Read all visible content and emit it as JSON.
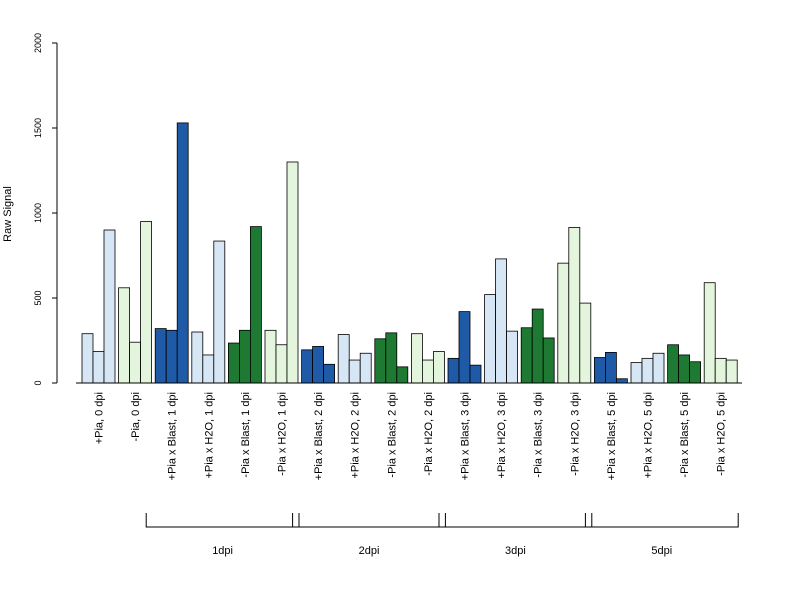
{
  "chart_data": {
    "type": "bar",
    "ylabel": "Raw Signal",
    "ylim": [
      0,
      2000
    ],
    "yticks": [
      0,
      500,
      1000,
      1500,
      2000
    ],
    "grid": false,
    "categories": [
      "+Pia, 0 dpi",
      "-Pia, 0 dpi",
      "+Pia x Blast, 1 dpi",
      "+Pia x H2O, 1 dpi",
      "-Pia x Blast, 1 dpi",
      "-Pia x H2O, 1 dpi",
      "+Pia x Blast, 2 dpi",
      "+Pia x H2O, 2 dpi",
      "-Pia x Blast, 2 dpi",
      "-Pia x H2O, 2 dpi",
      "+Pia x Blast, 3 dpi",
      "+Pia x H2O, 3 dpi",
      "-Pia x Blast, 3 dpi",
      "-Pia x H2O, 3 dpi",
      "+Pia x Blast, 5 dpi",
      "+Pia x H2O, 5 dpi",
      "-Pia x Blast, 5 dpi",
      "-Pia x H2O, 5 dpi"
    ],
    "colors": {
      "+Pia x Blast": "#1f5aa6",
      "+Pia x H2O": "#d7e6f5",
      "-Pia x Blast": "#1e7a32",
      "-Pia x H2O": "#e3f5dc",
      "border": "#000000"
    },
    "category_fill_keys": [
      "+Pia x H2O",
      "-Pia x H2O",
      "+Pia x Blast",
      "+Pia x H2O",
      "-Pia x Blast",
      "-Pia x H2O",
      "+Pia x Blast",
      "+Pia x H2O",
      "-Pia x Blast",
      "-Pia x H2O",
      "+Pia x Blast",
      "+Pia x H2O",
      "-Pia x Blast",
      "-Pia x H2O",
      "+Pia x Blast",
      "+Pia x H2O",
      "-Pia x Blast",
      "-Pia x H2O"
    ],
    "values": [
      [
        290,
        185,
        900
      ],
      [
        560,
        240,
        950
      ],
      [
        320,
        310,
        1530
      ],
      [
        300,
        165,
        835
      ],
      [
        235,
        310,
        920
      ],
      [
        310,
        225,
        1300
      ],
      [
        195,
        215,
        110
      ],
      [
        285,
        135,
        175
      ],
      [
        260,
        295,
        95
      ],
      [
        290,
        135,
        185
      ],
      [
        145,
        420,
        105
      ],
      [
        520,
        730,
        305
      ],
      [
        325,
        435,
        265
      ],
      [
        705,
        915,
        470
      ],
      [
        150,
        180,
        25
      ],
      [
        120,
        145,
        175
      ],
      [
        225,
        165,
        125
      ],
      [
        590,
        145,
        135
      ]
    ],
    "groups": [
      {
        "label": "1dpi",
        "first": 2,
        "last": 5
      },
      {
        "label": "2dpi",
        "first": 6,
        "last": 9
      },
      {
        "label": "3dpi",
        "first": 10,
        "last": 13
      },
      {
        "label": "5dpi",
        "first": 14,
        "last": 17
      }
    ]
  }
}
